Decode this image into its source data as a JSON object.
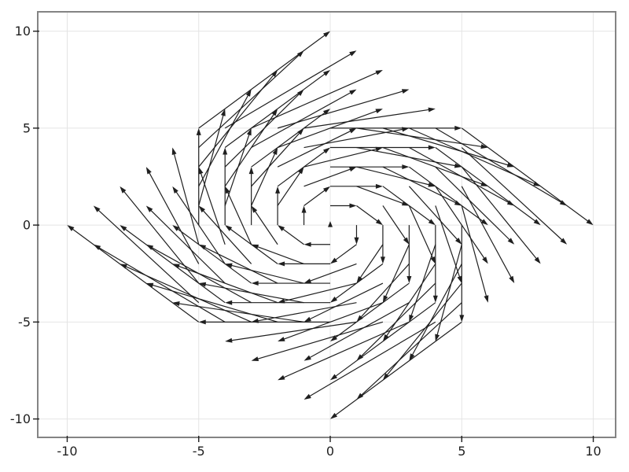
{
  "chart_data": {
    "type": "quiver",
    "title": "",
    "xlabel": "",
    "ylabel": "",
    "xlim": [
      -11.12,
      10.85
    ],
    "ylim": [
      -10.95,
      11.0
    ],
    "x_ticks": [
      -10,
      -5,
      0,
      5,
      10
    ],
    "y_ticks": [
      -10,
      -5,
      0,
      5,
      10
    ],
    "grid": true,
    "legend": "none",
    "field": "u = y, v = -x (clockwise rotation), arrows drawn from (x,y) to (x+u, y+v)",
    "grid_points": {
      "x_min": -5,
      "x_max": 5,
      "y_min": -5,
      "y_max": 5,
      "step": 1
    },
    "vectors": [
      [
        -5,
        -5,
        -5,
        5
      ],
      [
        -4,
        -5,
        -5,
        4
      ],
      [
        -3,
        -5,
        -5,
        3
      ],
      [
        -2,
        -5,
        -5,
        2
      ],
      [
        -1,
        -5,
        -5,
        1
      ],
      [
        0,
        -5,
        -5,
        0
      ],
      [
        1,
        -5,
        -5,
        -1
      ],
      [
        2,
        -5,
        -5,
        -2
      ],
      [
        3,
        -5,
        -5,
        -3
      ],
      [
        4,
        -5,
        -5,
        -4
      ],
      [
        5,
        -5,
        -5,
        -5
      ],
      [
        -5,
        -4,
        -4,
        5
      ],
      [
        -4,
        -4,
        -4,
        4
      ],
      [
        -3,
        -4,
        -4,
        3
      ],
      [
        -2,
        -4,
        -4,
        2
      ],
      [
        -1,
        -4,
        -4,
        1
      ],
      [
        0,
        -4,
        -4,
        0
      ],
      [
        1,
        -4,
        -4,
        -1
      ],
      [
        2,
        -4,
        -4,
        -2
      ],
      [
        3,
        -4,
        -4,
        -3
      ],
      [
        4,
        -4,
        -4,
        -4
      ],
      [
        5,
        -4,
        -4,
        -5
      ],
      [
        -5,
        -3,
        -3,
        5
      ],
      [
        -4,
        -3,
        -3,
        4
      ],
      [
        -3,
        -3,
        -3,
        3
      ],
      [
        -2,
        -3,
        -3,
        2
      ],
      [
        -1,
        -3,
        -3,
        1
      ],
      [
        0,
        -3,
        -3,
        0
      ],
      [
        1,
        -3,
        -3,
        -1
      ],
      [
        2,
        -3,
        -3,
        -2
      ],
      [
        3,
        -3,
        -3,
        -3
      ],
      [
        4,
        -3,
        -3,
        -4
      ],
      [
        5,
        -3,
        -3,
        -5
      ],
      [
        -5,
        -2,
        -2,
        5
      ],
      [
        -4,
        -2,
        -2,
        4
      ],
      [
        -3,
        -2,
        -2,
        3
      ],
      [
        -2,
        -2,
        -2,
        2
      ],
      [
        -1,
        -2,
        -2,
        1
      ],
      [
        0,
        -2,
        -2,
        0
      ],
      [
        1,
        -2,
        -2,
        -1
      ],
      [
        2,
        -2,
        -2,
        -2
      ],
      [
        3,
        -2,
        -2,
        -3
      ],
      [
        4,
        -2,
        -2,
        -4
      ],
      [
        5,
        -2,
        -2,
        -5
      ],
      [
        -5,
        -1,
        -1,
        5
      ],
      [
        -4,
        -1,
        -1,
        4
      ],
      [
        -3,
        -1,
        -1,
        3
      ],
      [
        -2,
        -1,
        -1,
        2
      ],
      [
        -1,
        -1,
        -1,
        1
      ],
      [
        0,
        -1,
        -1,
        0
      ],
      [
        1,
        -1,
        -1,
        -1
      ],
      [
        2,
        -1,
        -1,
        -2
      ],
      [
        3,
        -1,
        -1,
        -3
      ],
      [
        4,
        -1,
        -1,
        -4
      ],
      [
        5,
        -1,
        -1,
        -5
      ],
      [
        -5,
        0,
        0,
        5
      ],
      [
        -4,
        0,
        0,
        4
      ],
      [
        -3,
        0,
        0,
        3
      ],
      [
        -2,
        0,
        0,
        2
      ],
      [
        -1,
        0,
        0,
        1
      ],
      [
        0,
        0,
        0,
        0
      ],
      [
        1,
        0,
        0,
        -1
      ],
      [
        2,
        0,
        0,
        -2
      ],
      [
        3,
        0,
        0,
        -3
      ],
      [
        4,
        0,
        0,
        -4
      ],
      [
        5,
        0,
        0,
        -5
      ],
      [
        -5,
        1,
        1,
        5
      ],
      [
        -4,
        1,
        1,
        4
      ],
      [
        -3,
        1,
        1,
        3
      ],
      [
        -2,
        1,
        1,
        2
      ],
      [
        -1,
        1,
        1,
        1
      ],
      [
        0,
        1,
        1,
        0
      ],
      [
        1,
        1,
        1,
        -1
      ],
      [
        2,
        1,
        1,
        -2
      ],
      [
        3,
        1,
        1,
        -3
      ],
      [
        4,
        1,
        1,
        -4
      ],
      [
        5,
        1,
        1,
        -5
      ],
      [
        -5,
        2,
        2,
        5
      ],
      [
        -4,
        2,
        2,
        4
      ],
      [
        -3,
        2,
        2,
        3
      ],
      [
        -2,
        2,
        2,
        2
      ],
      [
        -1,
        2,
        2,
        1
      ],
      [
        0,
        2,
        2,
        0
      ],
      [
        1,
        2,
        2,
        -1
      ],
      [
        2,
        2,
        2,
        -2
      ],
      [
        3,
        2,
        2,
        -3
      ],
      [
        4,
        2,
        2,
        -4
      ],
      [
        5,
        2,
        2,
        -5
      ],
      [
        -5,
        3,
        3,
        5
      ],
      [
        -4,
        3,
        3,
        4
      ],
      [
        -3,
        3,
        3,
        3
      ],
      [
        -2,
        3,
        3,
        2
      ],
      [
        -1,
        3,
        3,
        1
      ],
      [
        0,
        3,
        3,
        0
      ],
      [
        1,
        3,
        3,
        -1
      ],
      [
        2,
        3,
        3,
        -2
      ],
      [
        3,
        3,
        3,
        -3
      ],
      [
        4,
        3,
        3,
        -4
      ],
      [
        5,
        3,
        3,
        -5
      ],
      [
        -5,
        4,
        4,
        5
      ],
      [
        -4,
        4,
        4,
        4
      ],
      [
        -3,
        4,
        4,
        3
      ],
      [
        -2,
        4,
        4,
        2
      ],
      [
        -1,
        4,
        4,
        1
      ],
      [
        0,
        4,
        4,
        0
      ],
      [
        1,
        4,
        4,
        -1
      ],
      [
        2,
        4,
        4,
        -2
      ],
      [
        3,
        4,
        4,
        -3
      ],
      [
        4,
        4,
        4,
        -4
      ],
      [
        5,
        4,
        4,
        -5
      ],
      [
        -5,
        5,
        5,
        5
      ],
      [
        -4,
        5,
        5,
        4
      ],
      [
        -3,
        5,
        5,
        3
      ],
      [
        -2,
        5,
        5,
        2
      ],
      [
        -1,
        5,
        5,
        1
      ],
      [
        0,
        5,
        5,
        0
      ],
      [
        1,
        5,
        5,
        -1
      ],
      [
        2,
        5,
        5,
        -2
      ],
      [
        3,
        5,
        5,
        -3
      ],
      [
        4,
        5,
        5,
        -4
      ],
      [
        5,
        5,
        5,
        -5
      ]
    ],
    "colors": {
      "arrow": "#1f1f1f",
      "gridline": "#e4e4e4",
      "frame": "#848484",
      "tick": "#1f1f1f",
      "tick_label": "#1f1f1f",
      "background": "#ffffff"
    }
  }
}
